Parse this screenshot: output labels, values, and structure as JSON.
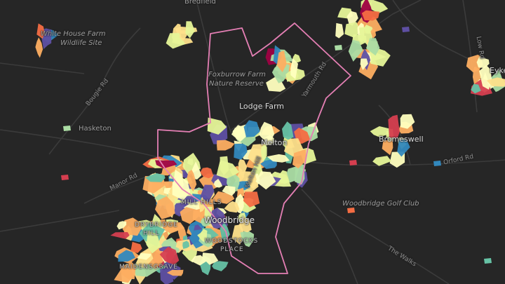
{
  "colors": {
    "background": "#262626",
    "road": "#3b3b3b",
    "boundary": "#e47fb4",
    "palette": [
      "#9e0142",
      "#d53e4f",
      "#f46d43",
      "#fdae61",
      "#fee08b",
      "#ffffbf",
      "#e6f598",
      "#abdda4",
      "#66c2a5",
      "#3288bd",
      "#5e4fa2"
    ]
  },
  "labels": {
    "bredfield": "Bredfield",
    "white_house_farm": "White House Farm",
    "wildlife_site": "Wildlife Site",
    "foxburrow_farm": "Foxburrow Farm",
    "nature_reserve": "Nature Reserve",
    "lodge_farm": "Lodge Farm",
    "melton": "Melton",
    "bromeswell": "Bromeswell",
    "woodbridge": "Woodbridge",
    "mill_hills": "MILL HILLS",
    "drybridge_hill_1": "DRYBRIDGE",
    "drybridge_hill_2": "HILL",
    "woodstocks_place_1": "WOODSTOCKS",
    "woodstocks_place_2": "PLACE",
    "maidensgrave": "MAIDENSGRAVE",
    "hasketon": "Hasketon",
    "woodbridge_golf_club": "Woodbridge Golf Club",
    "eyke": "Eyke"
  },
  "roads": {
    "bougie_rd": "Bougie Rd",
    "manor_rd": "Manor Rd",
    "yarmouth_rd": "Yarmouth Rd",
    "low_rd": "Low Rd",
    "orford_rd": "Orford Rd",
    "the_walks": "The Walks",
    "melton_hill": "Melton Hill"
  },
  "icons": [
    "boundary-outline",
    "choropleth-patches"
  ]
}
